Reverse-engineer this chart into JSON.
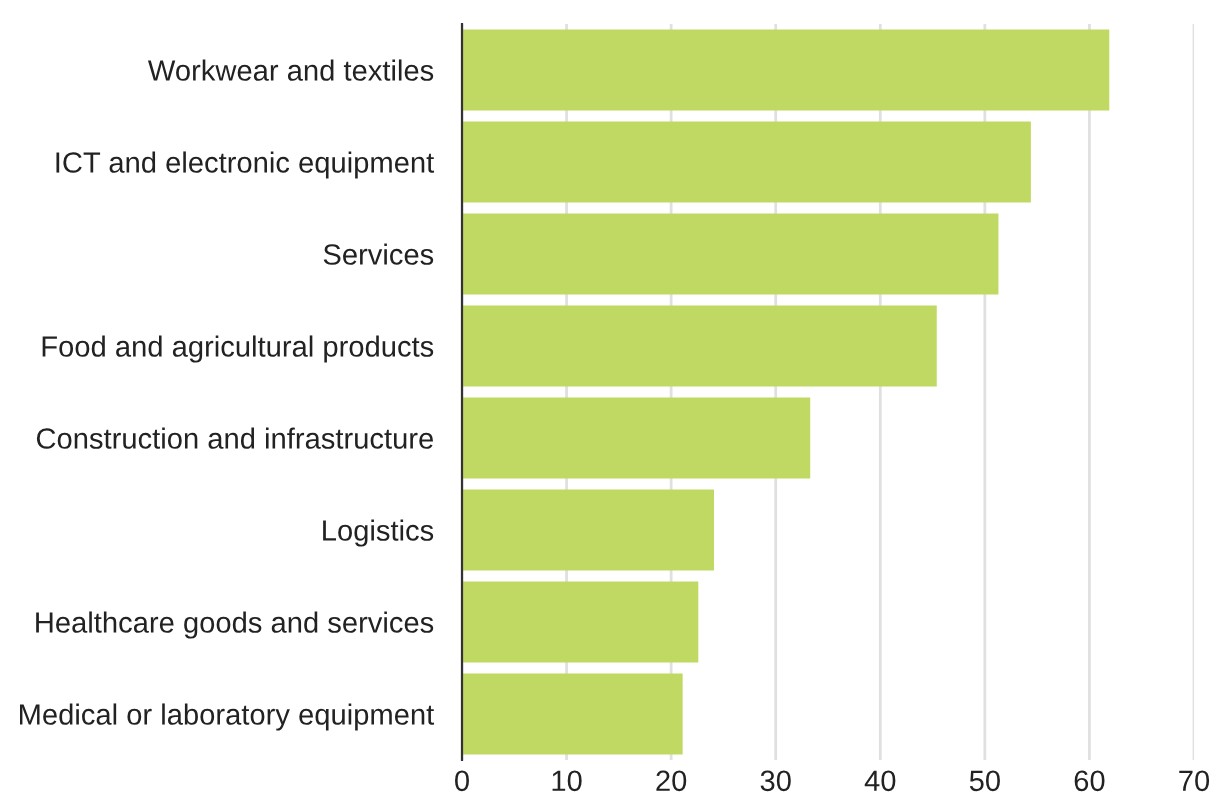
{
  "chart_data": {
    "type": "bar",
    "orientation": "horizontal",
    "categories": [
      "Workwear and textiles",
      "ICT and electronic equipment",
      "Services",
      "Food and agricultural products",
      "Construction and infrastructure",
      "Logistics",
      "Healthcare goods and services",
      "Medical or laboratory equipment"
    ],
    "values": [
      61.9,
      54.4,
      51.3,
      45.4,
      33.3,
      24.1,
      22.6,
      21.1
    ],
    "color": "#bfd962",
    "xlim": [
      0,
      70
    ],
    "xticks": [
      0,
      10,
      20,
      30,
      40,
      50,
      60,
      70
    ],
    "grid": "x"
  }
}
